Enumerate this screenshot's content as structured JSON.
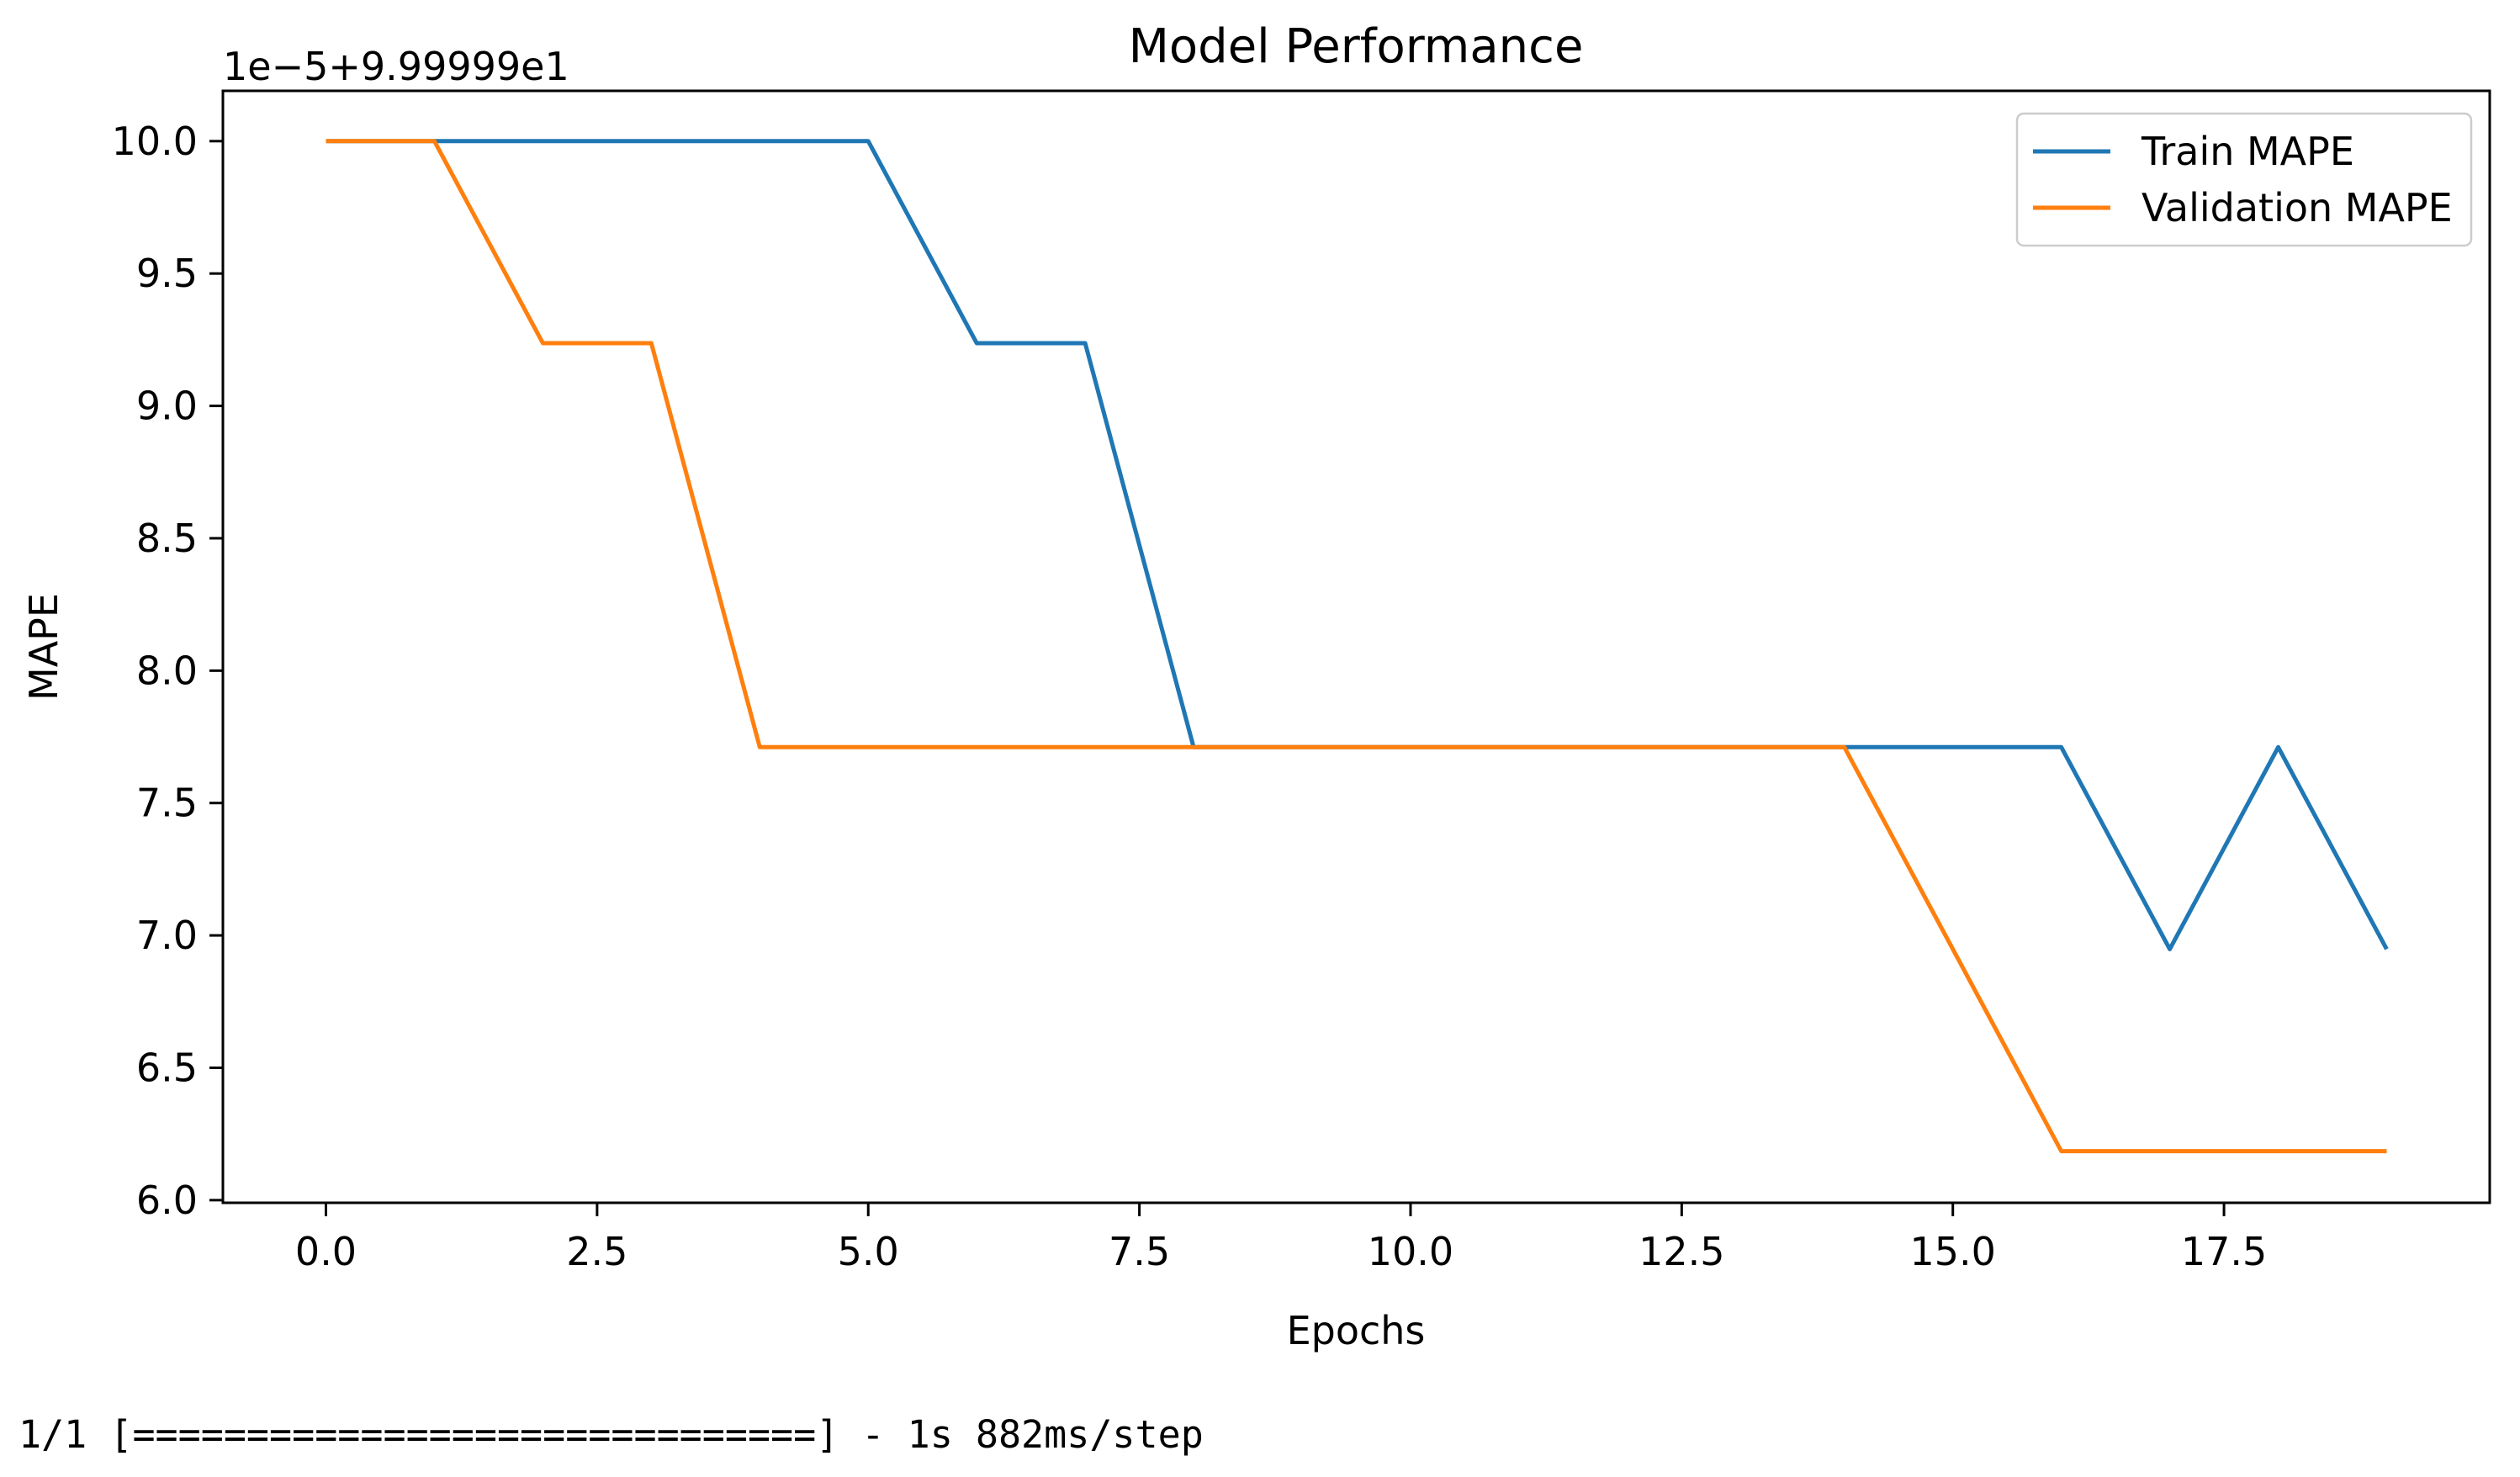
{
  "chart_data": {
    "type": "line",
    "title": "Model Performance",
    "xlabel": "Epochs",
    "ylabel": "MAPE",
    "y_offset_label": "1e−5+9.99999e1",
    "x": [
      0,
      1,
      2,
      3,
      4,
      5,
      6,
      7,
      8,
      9,
      10,
      11,
      12,
      13,
      14,
      15,
      16,
      17,
      18,
      19
    ],
    "series": [
      {
        "name": "Train MAPE",
        "color": "#1f77b4",
        "values": [
          10.0,
          10.0,
          10.0,
          10.0,
          10.0,
          10.0,
          9.237,
          9.237,
          7.711,
          7.711,
          7.711,
          7.711,
          7.711,
          7.711,
          7.711,
          7.711,
          7.711,
          6.948,
          7.711,
          6.948
        ]
      },
      {
        "name": "Validation MAPE",
        "color": "#ff7f0e",
        "values": [
          10.0,
          10.0,
          9.237,
          9.237,
          7.711,
          7.711,
          7.711,
          7.711,
          7.711,
          7.711,
          7.711,
          7.711,
          7.711,
          7.711,
          7.711,
          6.948,
          6.185,
          6.185,
          6.185,
          6.185
        ]
      }
    ],
    "xlim": [
      -0.95,
      19.95
    ],
    "ylim": [
      5.99,
      10.19
    ],
    "xticks": [
      0,
      2.5,
      5,
      7.5,
      10,
      12.5,
      15,
      17.5
    ],
    "yticks": [
      6,
      6.5,
      7,
      7.5,
      8,
      8.5,
      9,
      9.5,
      10
    ],
    "grid": false,
    "legend_position": "upper right",
    "legend_border_color": "#cccccc"
  },
  "console": {
    "line": "1/1 [==============================] - 1s 882ms/step"
  }
}
